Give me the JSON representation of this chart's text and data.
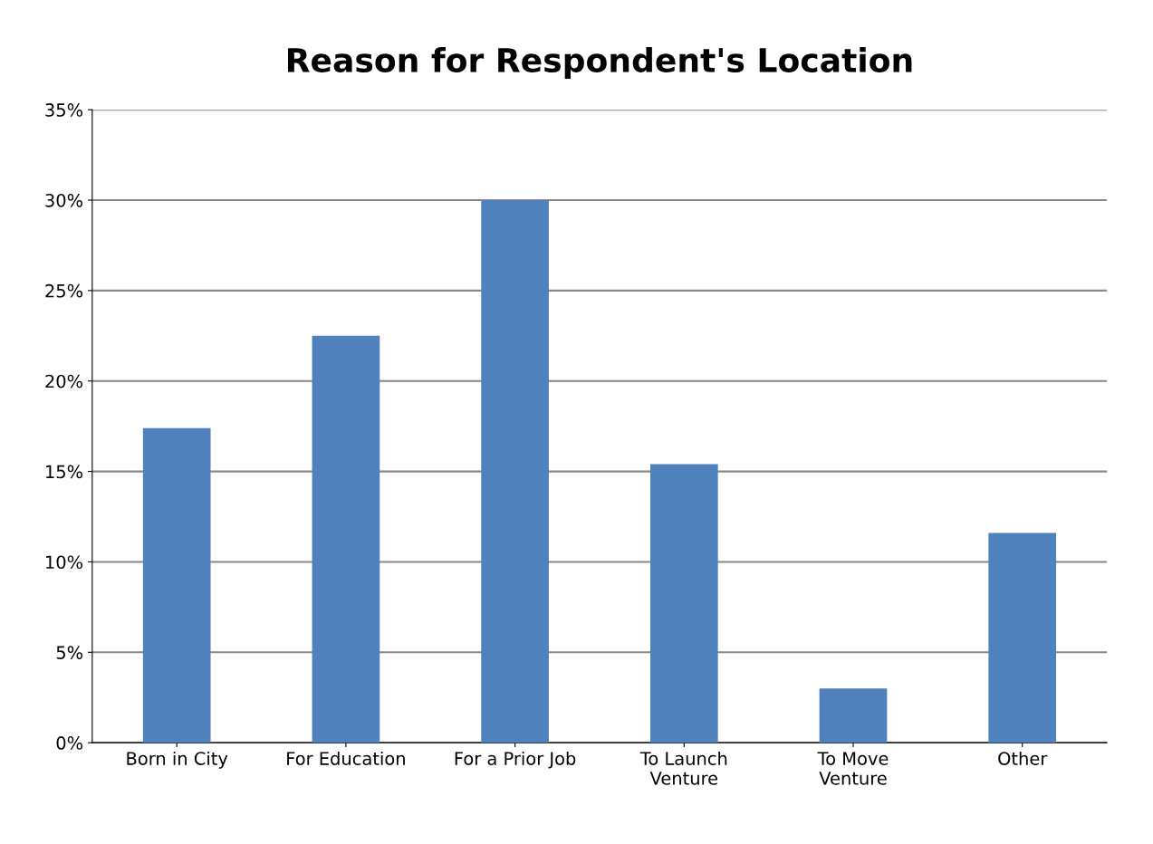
{
  "chart_data": {
    "type": "bar",
    "title": "Reason for Respondent's Location",
    "categories": [
      "Born in City",
      "For Education",
      "For a Prior Job",
      "To Launch\nVenture",
      "To Move\nVenture",
      "Other"
    ],
    "values": [
      17.4,
      22.5,
      30.0,
      15.4,
      3.0,
      11.6
    ],
    "color": "#4f81bd",
    "ylim": [
      0,
      35
    ],
    "yticks": [
      {
        "value": 0,
        "label": "0%"
      },
      {
        "value": 5,
        "label": "5%"
      },
      {
        "value": 10,
        "label": "10%"
      },
      {
        "value": 15,
        "label": "15%"
      },
      {
        "value": 20,
        "label": "20%"
      },
      {
        "value": 25,
        "label": "25%"
      },
      {
        "value": 30,
        "label": "30%"
      },
      {
        "value": 35,
        "label": "35%"
      }
    ],
    "grid": "y"
  }
}
